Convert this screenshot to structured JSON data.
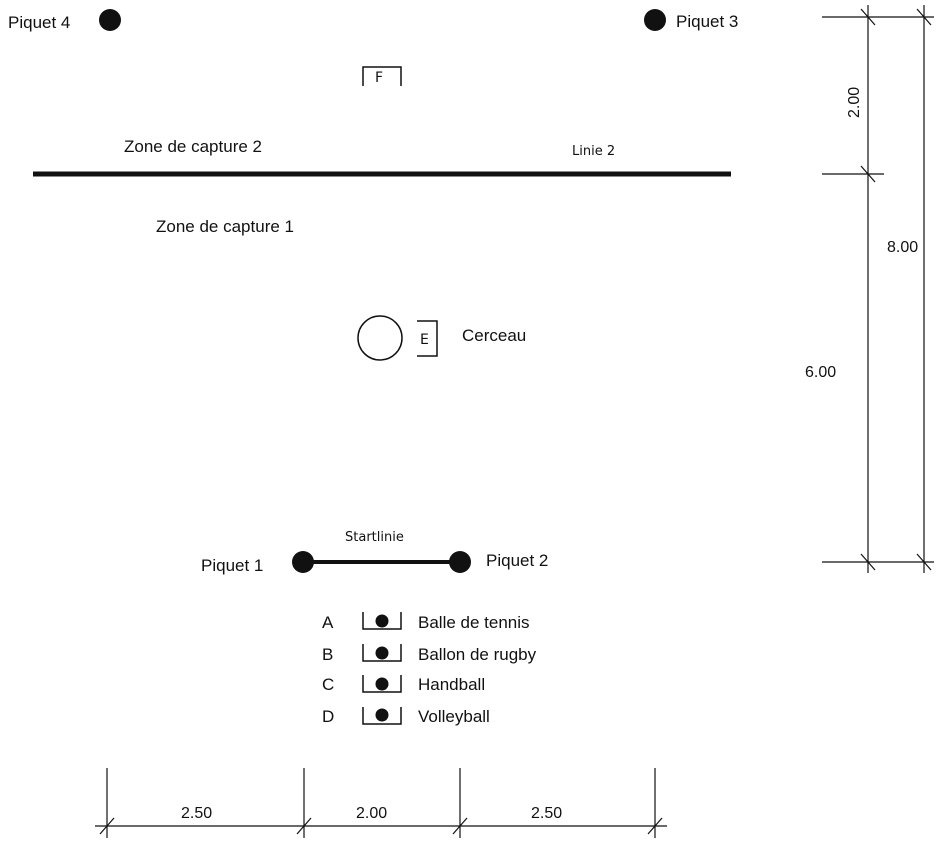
{
  "pickets": {
    "p4": "Piquet 4",
    "p3": "Piquet 3",
    "p1": "Piquet 1",
    "p2": "Piquet 2"
  },
  "zones": {
    "zone2": "Zone de capture 2",
    "zone1": "Zone de capture 1",
    "line2": "Linie 2",
    "startline": "Startlinie"
  },
  "boxes": {
    "f": "F",
    "e": "E",
    "hoop": "Cerceau"
  },
  "equipment": [
    {
      "letter": "A",
      "label": "Balle de tennis"
    },
    {
      "letter": "B",
      "label": "Ballon de rugby"
    },
    {
      "letter": "C",
      "label": "Handball"
    },
    {
      "letter": "D",
      "label": "Volleyball"
    }
  ],
  "dimensions": {
    "top_segment": "2.00",
    "total_height": "8.00",
    "lower_segment": "6.00",
    "bottom_left": "2.50",
    "bottom_mid": "2.00",
    "bottom_right": "2.50"
  },
  "colors": {
    "ink": "#111111"
  }
}
